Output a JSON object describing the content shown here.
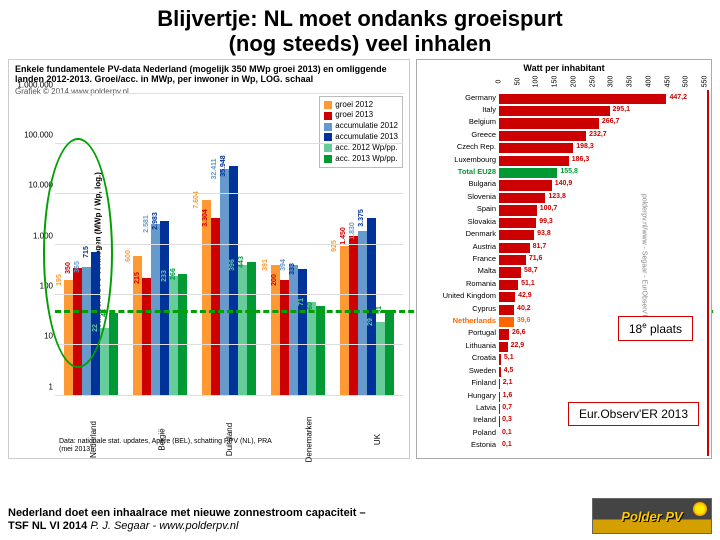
{
  "title_line1": "Blijvertje: NL moet ondanks groeispurt",
  "title_line2": "(nog steeds) veel inhalen",
  "left_chart": {
    "title": "Enkele fundamentele PV-data Nederland (mogelijk 350 MWp groei 2013) en omliggende landen 2012-2013. Groei/acc. in MWp, per inwoner in Wp, LOG. schaal",
    "credit": "Grafiek © 2014 www.polderpv.nl",
    "y_label": "Geïnstalleerd STC vermogen (MWp / Wp, log.)",
    "y_ticks": [
      "1",
      "10",
      "100",
      "1.000",
      "10.000",
      "100.000",
      "1.000.000"
    ],
    "scale": "log",
    "legend": [
      {
        "label": "groei 2012",
        "color": "#ff9933"
      },
      {
        "label": "groei 2013",
        "color": "#cc0000"
      },
      {
        "label": "accumulatie 2012",
        "color": "#6699cc"
      },
      {
        "label": "accumulatie 2013",
        "color": "#003399"
      },
      {
        "label": "acc. 2012 Wp/pp.",
        "color": "#66cc99"
      },
      {
        "label": "acc. 2013 Wp/pp.",
        "color": "#009933"
      }
    ],
    "countries": [
      "Nederland",
      "België",
      "Duitsland",
      "Denemarken",
      "UK"
    ],
    "series_colors": [
      "#ff9933",
      "#cc0000",
      "#6699cc",
      "#003399",
      "#66cc99",
      "#009933"
    ],
    "values": [
      [
        195,
        350,
        365,
        715,
        22,
        43
      ],
      [
        600,
        215,
        2581,
        2983,
        233,
        266
      ],
      [
        7604,
        3304,
        32411,
        35948,
        396,
        443
      ],
      [
        391,
        200,
        394,
        333,
        71,
        60
      ],
      [
        925,
        1450,
        1830,
        3375,
        29,
        51
      ]
    ],
    "label_colors": [
      "#ff9933",
      "#cc0000",
      "#6699cc",
      "#003399",
      "#66cc99",
      "#009933"
    ],
    "bottom_note": "Data: nationale stat. updates, Apere (BEL), schatting PPV (NL), PRA (mei 2013)",
    "dashed_y_value": 43
  },
  "right_chart": {
    "title": "Watt per inhabitant",
    "x_ticks": [
      0,
      50,
      100,
      150,
      200,
      250,
      300,
      350,
      400,
      450,
      500,
      550
    ],
    "x_max": 550,
    "eu_color": "#009933",
    "nl_color": "#ff6600",
    "bar_color": "#cc0000",
    "rows": [
      {
        "label": "Germany",
        "value": 447.2
      },
      {
        "label": "Italy",
        "value": 295.1
      },
      {
        "label": "Belgium",
        "value": 266.7
      },
      {
        "label": "Greece",
        "value": 232.7
      },
      {
        "label": "Czech Rep.",
        "value": 198.3
      },
      {
        "label": "Luxembourg",
        "value": 186.3
      },
      {
        "label": "Total EU28",
        "value": 155.8,
        "special": "eu"
      },
      {
        "label": "Bulgaria",
        "value": 140.9
      },
      {
        "label": "Slovenia",
        "value": 123.8
      },
      {
        "label": "Spain",
        "value": 100.7
      },
      {
        "label": "Slovakia",
        "value": 99.3
      },
      {
        "label": "Denmark",
        "value": 93.8
      },
      {
        "label": "Austria",
        "value": 81.7
      },
      {
        "label": "France",
        "value": 71.6
      },
      {
        "label": "Malta",
        "value": 58.7
      },
      {
        "label": "Romania",
        "value": 51.1
      },
      {
        "label": "United Kingdom",
        "value": 42.9
      },
      {
        "label": "Cyprus",
        "value": 40.2
      },
      {
        "label": "Netherlands",
        "value": 39.6,
        "special": "nl"
      },
      {
        "label": "Portugal",
        "value": 26.6
      },
      {
        "label": "Lithuania",
        "value": 22.9
      },
      {
        "label": "Croatia",
        "value": 5.1
      },
      {
        "label": "Sweden",
        "value": 4.5
      },
      {
        "label": "Finland",
        "value": 2.1
      },
      {
        "label": "Hungary",
        "value": 1.6
      },
      {
        "label": "Latvia",
        "value": 0.7
      },
      {
        "label": "Ireland",
        "value": 0.3
      },
      {
        "label": "Poland",
        "value": 0.1
      },
      {
        "label": "Estonia",
        "value": 0.1
      }
    ],
    "side_label": "polderpv.nl/www - Segaar - EurObserv'ER"
  },
  "callout_rank": "18",
  "callout_rank_suffix": "e",
  "callout_text": " plaats",
  "callout_source": "Eur.Observ'ER 2013",
  "footer_bold": "Nederland doet een inhaalrace met nieuwe zonnestroom capaciteit –",
  "footer_line2a": "TSF NL VI 2014 ",
  "footer_line2b": "P. J. Segaar  - www.polderpv.nl",
  "logo_text": "Polder PV"
}
